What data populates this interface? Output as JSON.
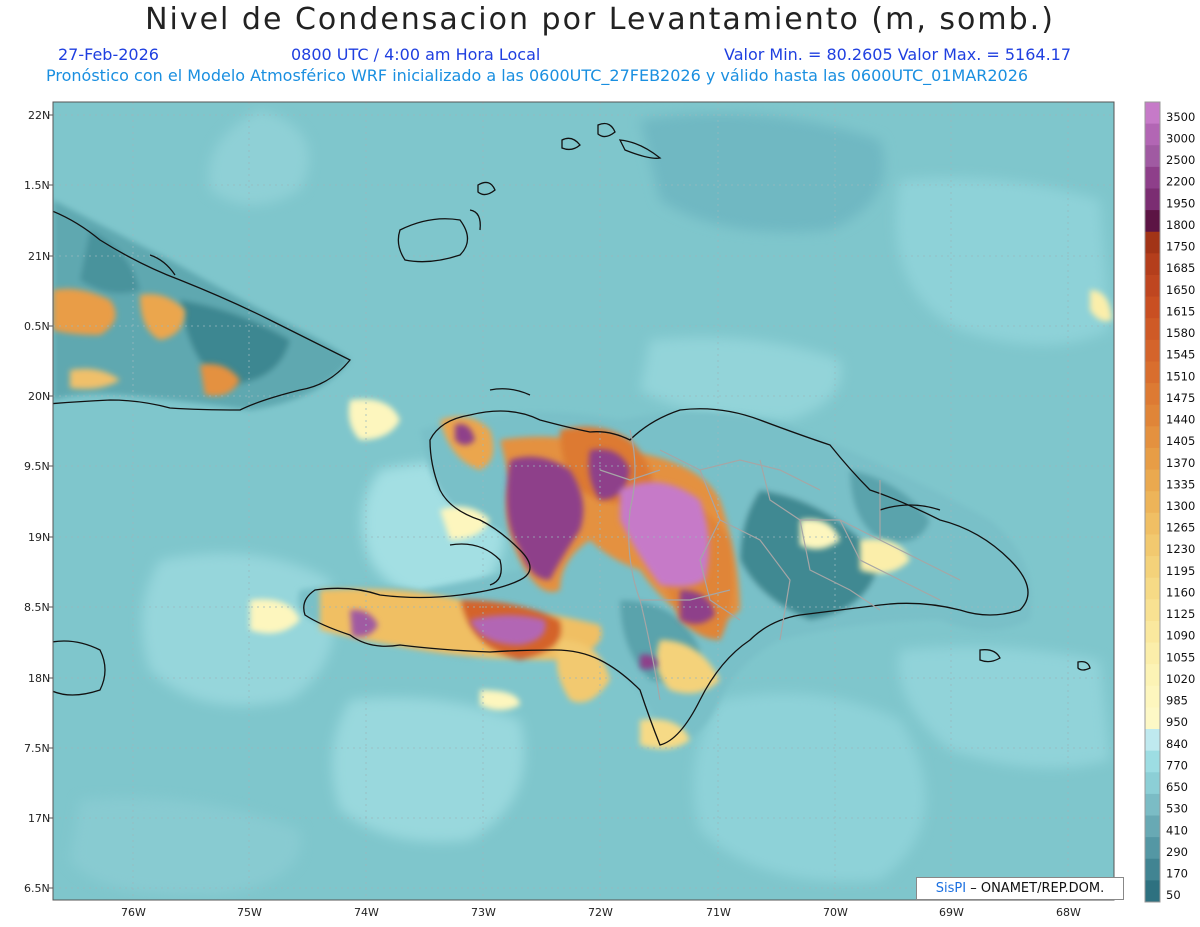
{
  "header": {
    "title": "Nivel de Condensacion por Levantamiento (m, somb.)",
    "date": "27-Feb-2026",
    "time": "0800 UTC / 4:00 am Hora Local",
    "range": "Valor Min. = 80.2605   Valor Max. = 5164.17",
    "forecast": "Pronóstico con el Modelo Atmosférico WRF inicializado a las 0600UTC_27FEB2026 y válido hasta las  0600UTC_01MAR2026"
  },
  "axes": {
    "lat_labels": [
      "22N",
      "1.5N",
      "21N",
      "0.5N",
      "20N",
      "9.5N",
      "19N",
      "8.5N",
      "18N",
      "7.5N",
      "17N",
      "6.5N"
    ],
    "lon_labels": [
      "76W",
      "75W",
      "74W",
      "73W",
      "72W",
      "71W",
      "70W",
      "69W",
      "68W"
    ]
  },
  "colorbar": {
    "labels": [
      "3500",
      "3000",
      "2500",
      "2200",
      "1950",
      "1800",
      "1750",
      "1685",
      "1650",
      "1615",
      "1580",
      "1545",
      "1510",
      "1475",
      "1440",
      "1405",
      "1370",
      "1335",
      "1300",
      "1265",
      "1230",
      "1195",
      "1160",
      "1125",
      "1090",
      "1055",
      "1020",
      "985",
      "950",
      "840",
      "770",
      "650",
      "530",
      "410",
      "290",
      "170",
      "50"
    ],
    "colors": [
      "#c67ac8",
      "#b266b4",
      "#a05aa2",
      "#8e3f8a",
      "#7b2d72",
      "#5c1444",
      "#a23417",
      "#b43e1c",
      "#bf4620",
      "#c94f22",
      "#cf5a26",
      "#d4642b",
      "#d96e2e",
      "#dd7a33",
      "#e08538",
      "#e4913f",
      "#e79d46",
      "#eaa94f",
      "#edb459",
      "#f0bf64",
      "#f2c96f",
      "#f4d27a",
      "#f6da86",
      "#f8e192",
      "#fae89e",
      "#fbeeaa",
      "#fcf3b5",
      "#fdf6be",
      "#fdf8c6",
      "#bfe9ef",
      "#9ddde3",
      "#8ccfd6",
      "#7bbcc5",
      "#68a9b4",
      "#5497a4",
      "#418492",
      "#2e7180"
    ]
  },
  "credit": {
    "sis": "SisPI",
    "org": " – ONAMET/REP.DOM."
  }
}
